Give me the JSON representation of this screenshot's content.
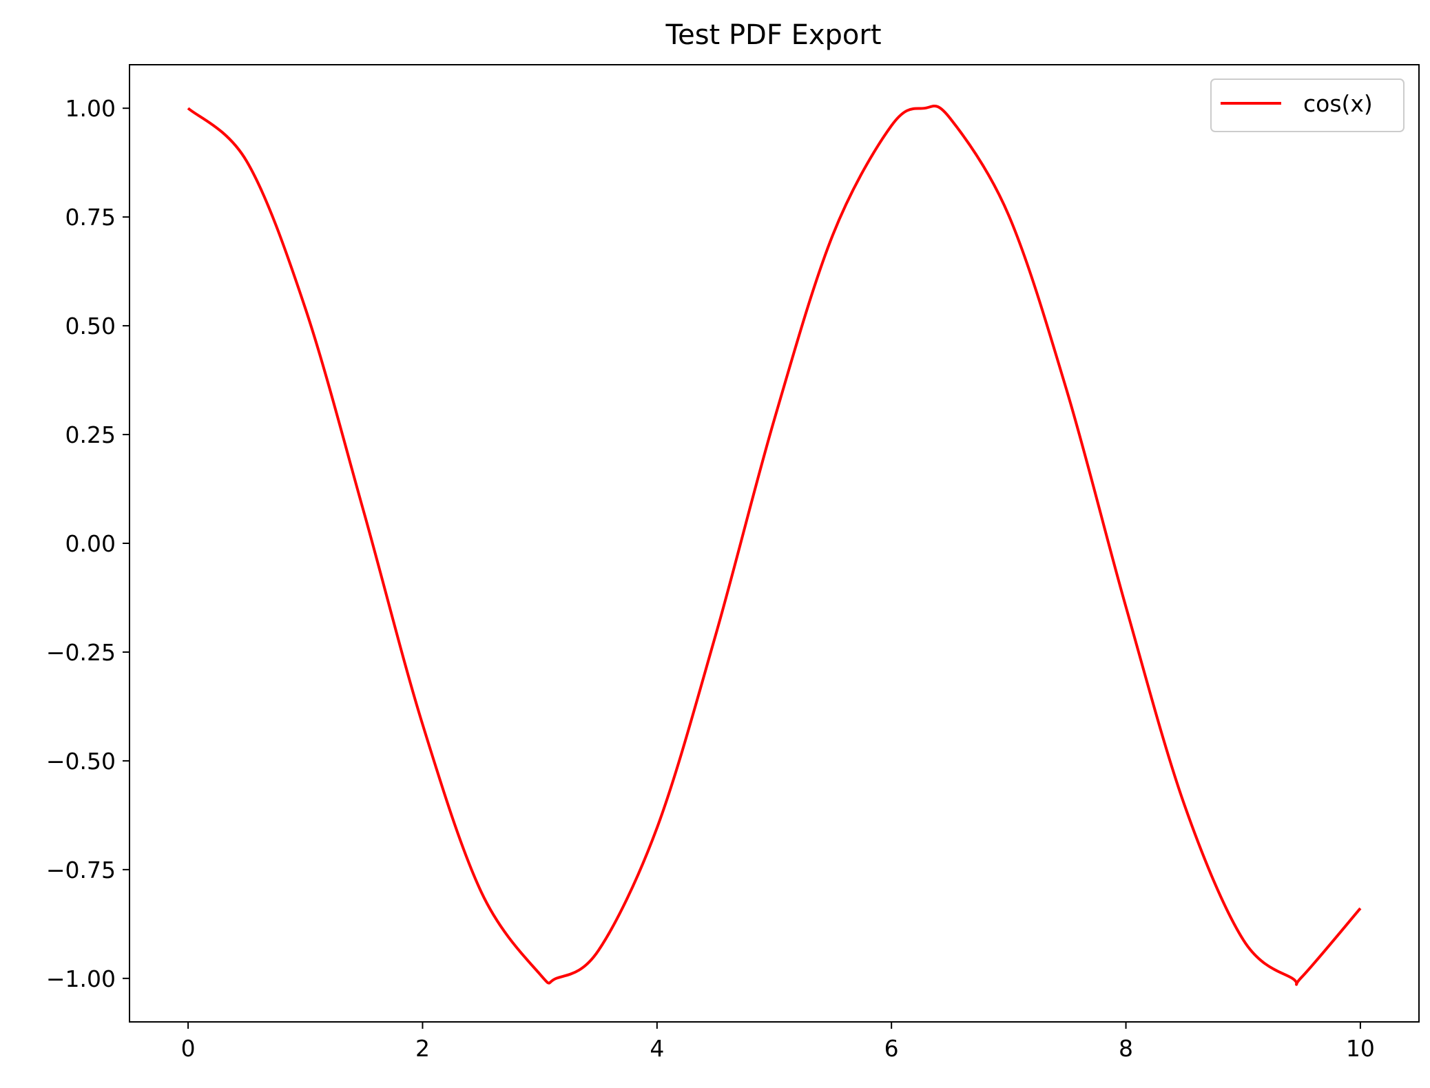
{
  "chart_data": {
    "type": "line",
    "title": "Test PDF Export",
    "xlabel": "",
    "ylabel": "",
    "xlim": [
      -0.5,
      10.5
    ],
    "ylim": [
      -1.1,
      1.1
    ],
    "xticks": [
      0,
      2,
      4,
      6,
      8,
      10
    ],
    "xtick_labels": [
      "0",
      "2",
      "4",
      "6",
      "8",
      "10"
    ],
    "yticks": [
      1.0,
      0.75,
      0.5,
      0.25,
      0.0,
      -0.25,
      -0.5,
      -0.75,
      -1.0
    ],
    "ytick_labels": [
      "1.00",
      "0.75",
      "0.50",
      "0.25",
      "0.00",
      "−0.25",
      "−0.50",
      "−0.75",
      "−1.00"
    ],
    "grid": false,
    "legend_position": "top-right",
    "series": [
      {
        "name": "cos(x)",
        "color": "#ff0000",
        "x": [
          0,
          0.5,
          1,
          1.5,
          2,
          2.5,
          3,
          3.14,
          3.5,
          4,
          4.5,
          5,
          5.5,
          6,
          6.28,
          6.5,
          7,
          7.5,
          8,
          8.5,
          9,
          9.42,
          9.5,
          10
        ],
        "y": [
          1.0,
          0.878,
          0.54,
          0.071,
          -0.416,
          -0.801,
          -0.99,
          -1.0,
          -0.936,
          -0.654,
          -0.211,
          0.284,
          0.709,
          0.96,
          1.0,
          0.977,
          0.754,
          0.347,
          -0.146,
          -0.602,
          -0.911,
          -1.0,
          -0.997,
          -0.839
        ]
      }
    ]
  }
}
